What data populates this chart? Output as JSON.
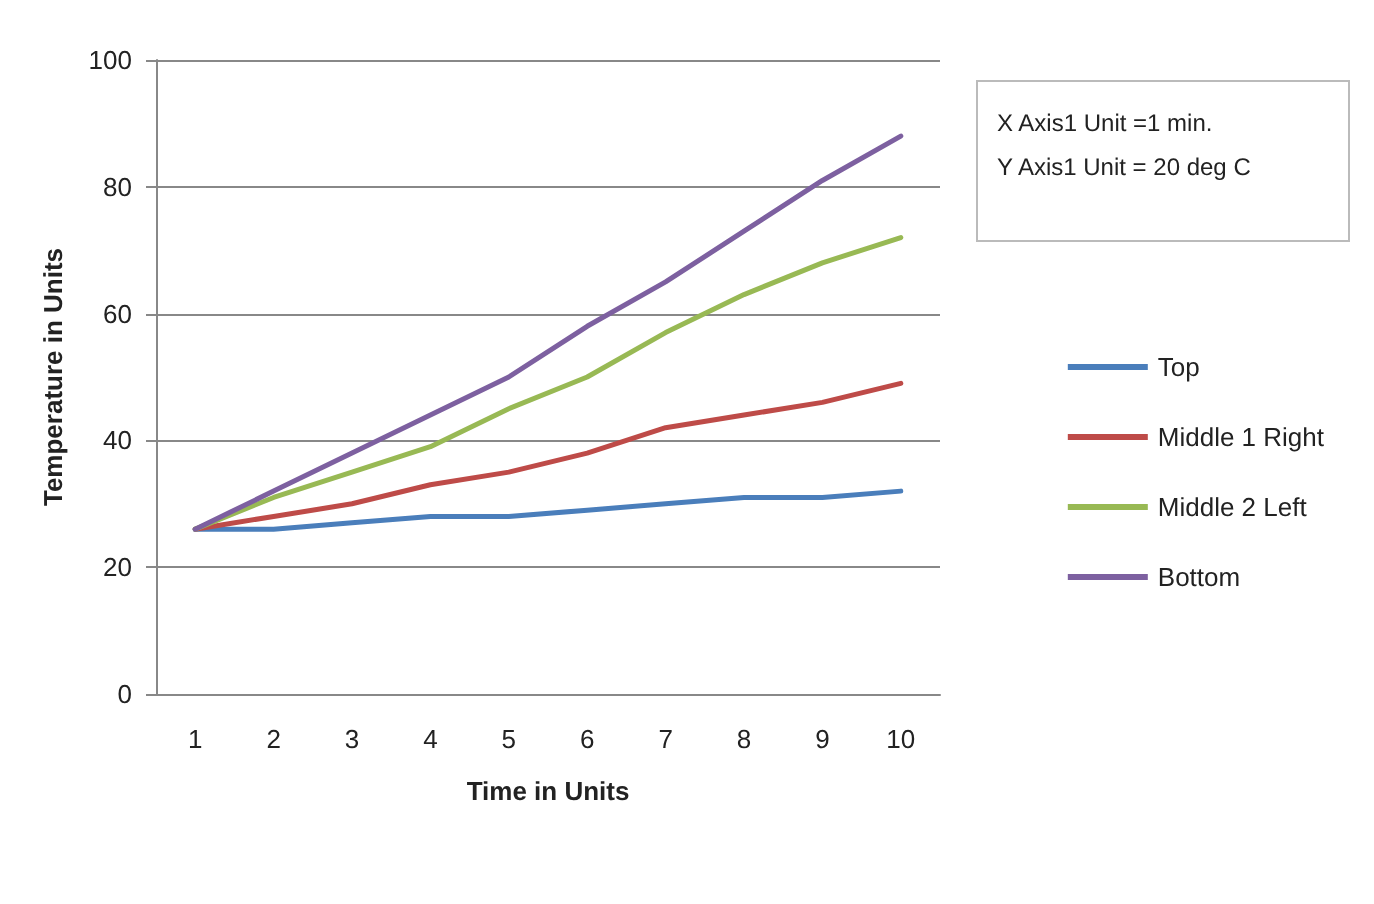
{
  "chart_data": {
    "type": "line",
    "xlabel": "Time in Units",
    "ylabel": "Temperature in Units",
    "categories": [
      "1",
      "2",
      "3",
      "4",
      "5",
      "6",
      "7",
      "8",
      "9",
      "10"
    ],
    "series": [
      {
        "name": "Top",
        "color": "#4a7ebb",
        "values": [
          26,
          26,
          27,
          28,
          28,
          29,
          30,
          31,
          31,
          32
        ]
      },
      {
        "name": "Middle 1 Right",
        "color": "#be4b48",
        "values": [
          26,
          28,
          30,
          33,
          35,
          38,
          42,
          44,
          46,
          49
        ]
      },
      {
        "name": "Middle 2 Left",
        "color": "#98b954",
        "values": [
          26,
          31,
          35,
          39,
          45,
          50,
          57,
          63,
          68,
          72
        ]
      },
      {
        "name": "Bottom",
        "color": "#7d60a0",
        "values": [
          26,
          32,
          38,
          44,
          50,
          58,
          65,
          73,
          81,
          88
        ]
      }
    ],
    "ylim": [
      0,
      100
    ],
    "yticks": [
      0,
      20,
      40,
      60,
      80,
      100
    ],
    "grid": "y",
    "legend": "right",
    "marker": "none",
    "line_style": "solid",
    "annotations": [
      "X Axis1 Unit =1 min.",
      "Y Axis1 Unit = 20 deg C"
    ]
  }
}
